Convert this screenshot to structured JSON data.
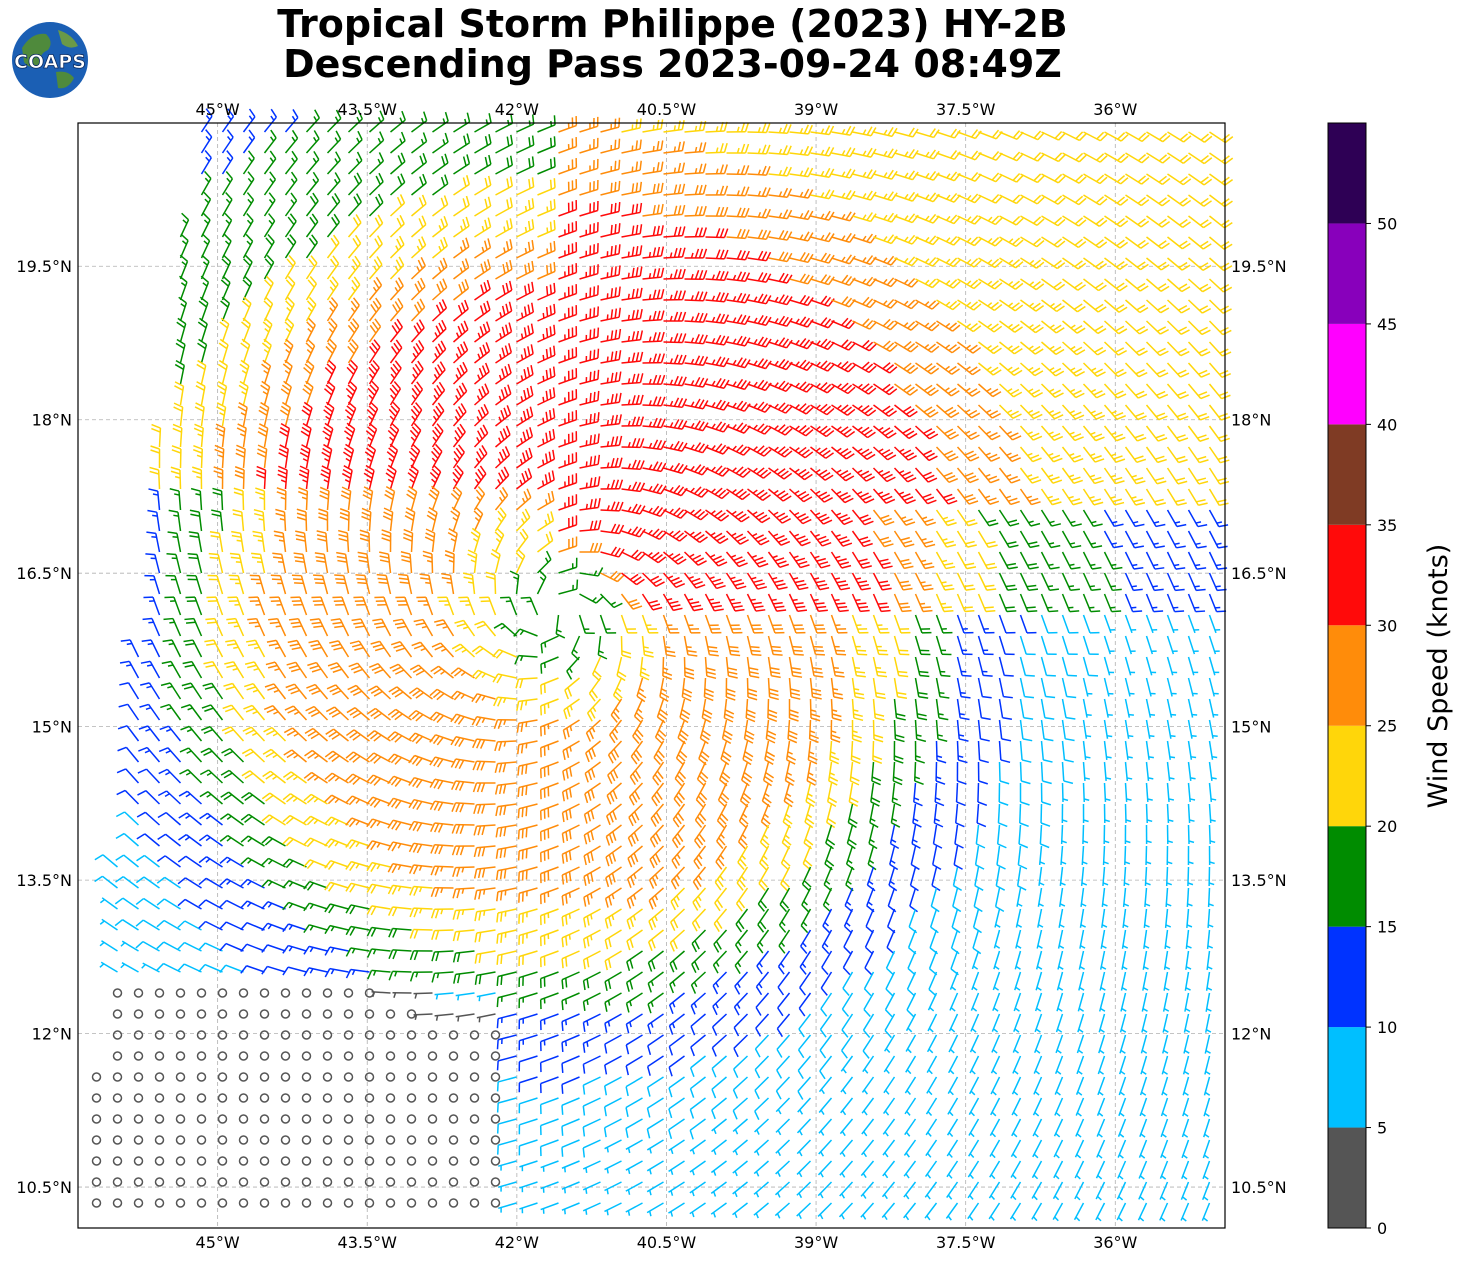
{
  "title_line1": "Tropical Storm Philippe (2023) HY-2B",
  "title_line2": "Descending Pass 2023-09-24 08:49Z",
  "logo_text": "COAPS",
  "map": {
    "lon_range": [
      -46.4,
      -34.9
    ],
    "lat_range": [
      10.1,
      20.9
    ],
    "lon_ticks": [
      "45°W",
      "43.5°W",
      "42°W",
      "40.5°W",
      "39°W",
      "37.5°W",
      "36°W"
    ],
    "lat_ticks": [
      "19.5°N",
      "18°N",
      "16.5°N",
      "15°N",
      "13.5°N",
      "12°N",
      "10.5°N"
    ],
    "grid": true,
    "storm_center": {
      "lon": -41.6,
      "lat": 16.1
    }
  },
  "colorbar": {
    "label": "Wind Speed (knots)",
    "tick_labels": [
      "0",
      "5",
      "10",
      "15",
      "20",
      "25",
      "30",
      "35",
      "40",
      "45",
      "50"
    ],
    "bins": [
      {
        "min": 0,
        "max": 5,
        "color": "#555555"
      },
      {
        "min": 5,
        "max": 10,
        "color": "#00bfff"
      },
      {
        "min": 10,
        "max": 15,
        "color": "#0033ff"
      },
      {
        "min": 15,
        "max": 20,
        "color": "#008c00"
      },
      {
        "min": 20,
        "max": 25,
        "color": "#ffd60a"
      },
      {
        "min": 25,
        "max": 30,
        "color": "#ff8c0a"
      },
      {
        "min": 30,
        "max": 35,
        "color": "#ff0a0a"
      },
      {
        "min": 35,
        "max": 40,
        "color": "#7f3b24"
      },
      {
        "min": 40,
        "max": 45,
        "color": "#ff00ff"
      },
      {
        "min": 45,
        "max": 50,
        "color": "#8800bb"
      },
      {
        "min": 50,
        "max": 55,
        "color": "#2e0055"
      }
    ]
  },
  "colors": {
    "ocean": "#1b5fb4",
    "land": "#4f8a3c"
  }
}
